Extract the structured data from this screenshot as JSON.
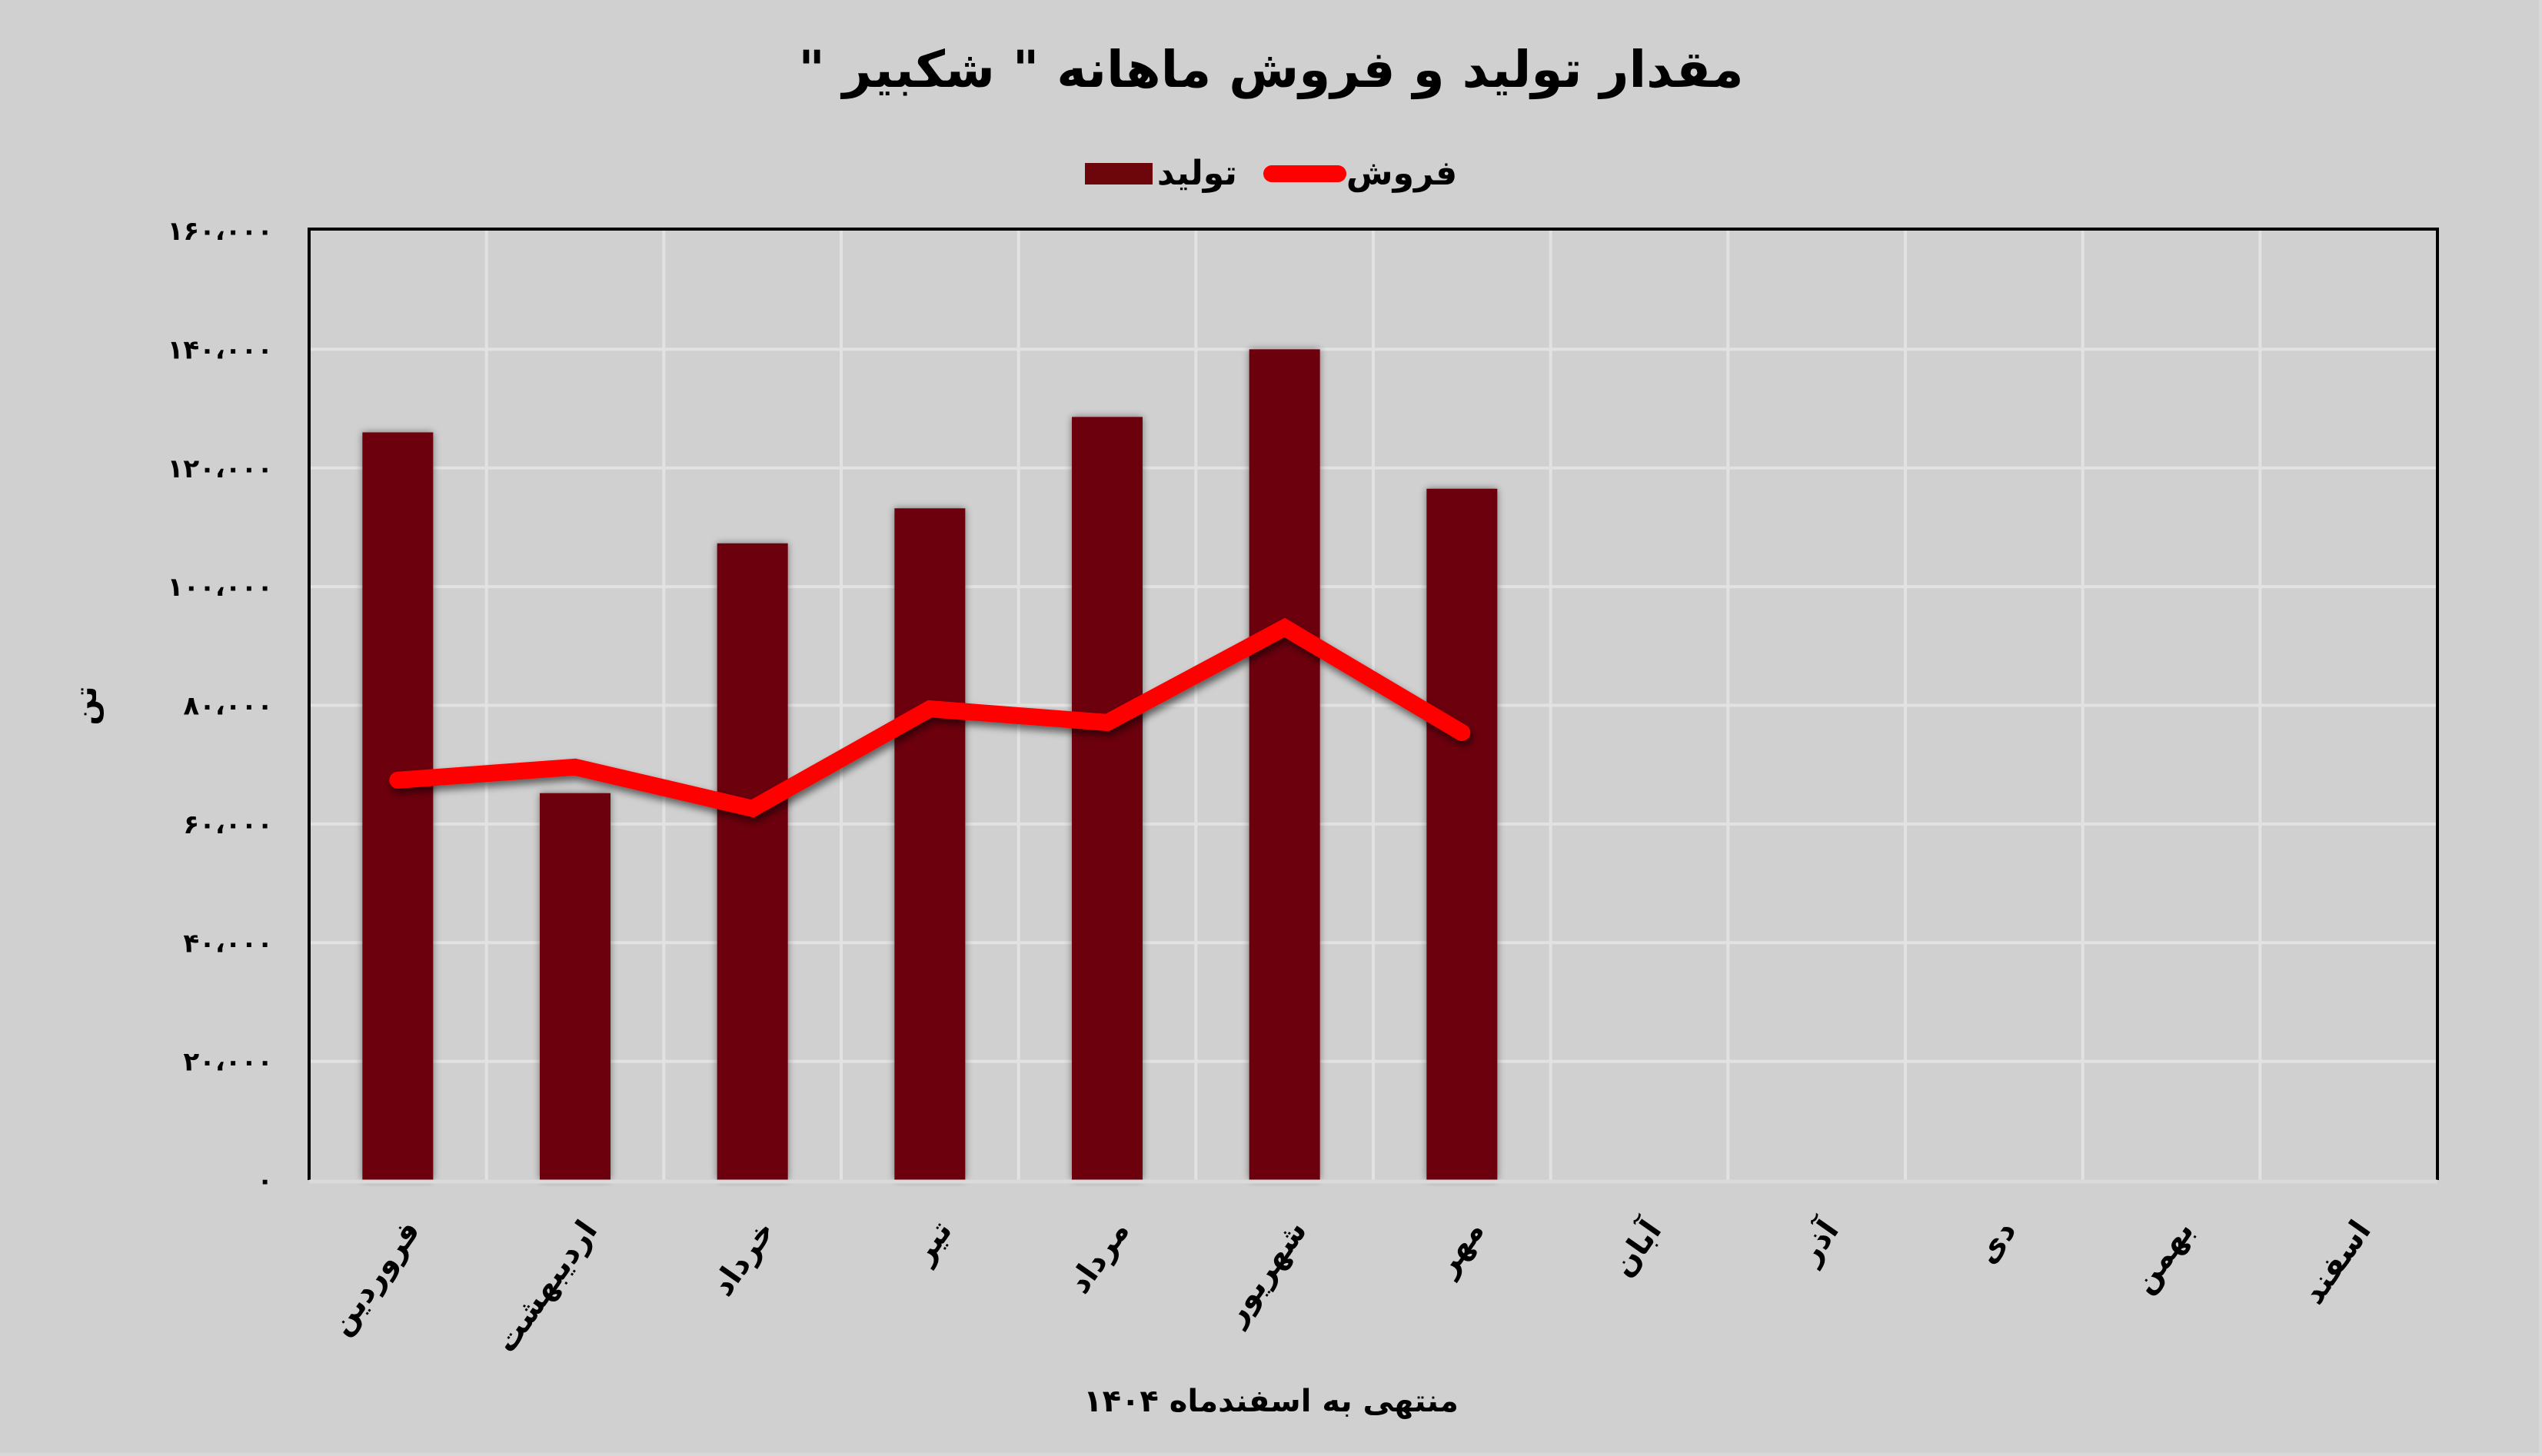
{
  "title": "مقدار تولید و فروش ماهانه \" شکبیر \"",
  "legend": {
    "sales_label": "فروش",
    "production_label": "تولید"
  },
  "axes": {
    "y_title": "تن",
    "x_title": "منتهی به اسفندماه ۱۴۰۴",
    "y_ticks": [
      "۰",
      "۲۰،۰۰۰",
      "۴۰،۰۰۰",
      "۶۰،۰۰۰",
      "۸۰،۰۰۰",
      "۱۰۰،۰۰۰",
      "۱۲۰،۰۰۰",
      "۱۴۰،۰۰۰",
      "۱۶۰،۰۰۰"
    ]
  },
  "colors": {
    "background": "#d0d0d0",
    "bar": "#6c060b",
    "line": "#ff0000",
    "gridline": "#e2e2e2",
    "axis": "#000000"
  },
  "chart_data": {
    "type": "bar",
    "title": "مقدار تولید و فروش ماهانه \" شکبیر \"",
    "xlabel": "منتهی به اسفندماه ۱۴۰۴",
    "ylabel": "تن",
    "ylim": [
      0,
      160000
    ],
    "y_tick_step": 20000,
    "grid": true,
    "legend_position": "top",
    "categories": [
      "فروردین",
      "اردیبهشت",
      "خرداد",
      "تیر",
      "مرداد",
      "شهریور",
      "مهر",
      "آبان",
      "آذر",
      "دی",
      "بهمن",
      "اسفند"
    ],
    "series": [
      {
        "name": "تولید",
        "type": "bar",
        "color": "#6c060b",
        "values": [
          126000,
          65200,
          107300,
          113200,
          128600,
          140000,
          116500,
          null,
          null,
          null,
          null,
          null
        ]
      },
      {
        "name": "فروش",
        "type": "line",
        "color": "#ff0000",
        "values": [
          67400,
          69600,
          62600,
          79400,
          77100,
          93100,
          75400,
          null,
          null,
          null,
          null,
          null
        ]
      }
    ]
  }
}
